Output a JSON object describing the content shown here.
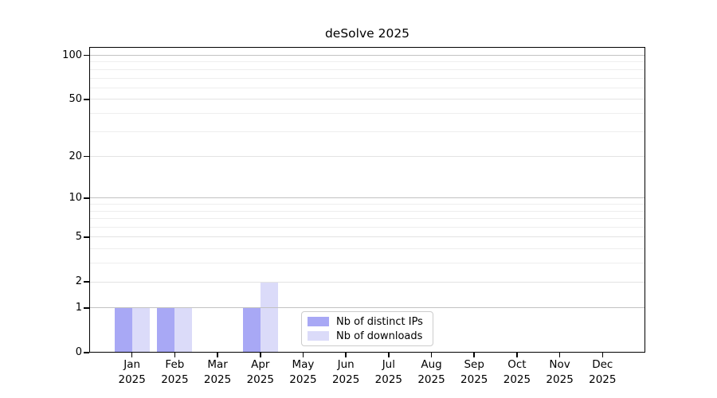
{
  "chart_data": {
    "type": "bar",
    "title": "deSolve 2025",
    "categories": [
      "Jan",
      "Feb",
      "Mar",
      "Apr",
      "May",
      "Jun",
      "Jul",
      "Aug",
      "Sep",
      "Oct",
      "Nov",
      "Dec"
    ],
    "x_tick_year": "2025",
    "series": [
      {
        "name": "Nb of distinct IPs",
        "color": "#a8a8f5",
        "values": [
          1,
          1,
          0,
          1,
          0,
          0,
          0,
          0,
          0,
          0,
          0,
          0
        ]
      },
      {
        "name": "Nb of downloads",
        "color": "#dbdbf9",
        "values": [
          1,
          1,
          0,
          2,
          0,
          0,
          0,
          0,
          0,
          0,
          0,
          0
        ]
      }
    ],
    "y_axis": {
      "scale": "log10(value+1)",
      "tick_values": [
        0,
        1,
        2,
        5,
        10,
        20,
        50,
        100
      ],
      "minor_gridline_values": [
        3,
        4,
        6,
        7,
        8,
        9,
        30,
        40,
        60,
        70,
        80,
        90
      ],
      "decade_gridline_values": [
        1,
        10,
        100
      ],
      "ylim": [
        0,
        114
      ]
    },
    "grid": "horizontal",
    "legend_position": "inside-bottom-center"
  },
  "colors": {
    "background": "#ffffff",
    "axis": "#000000",
    "text": "#000000",
    "grid_decade": "#c2c2c2",
    "grid_labeled": "#e3e3e3",
    "grid_minor": "#eeeeee"
  }
}
